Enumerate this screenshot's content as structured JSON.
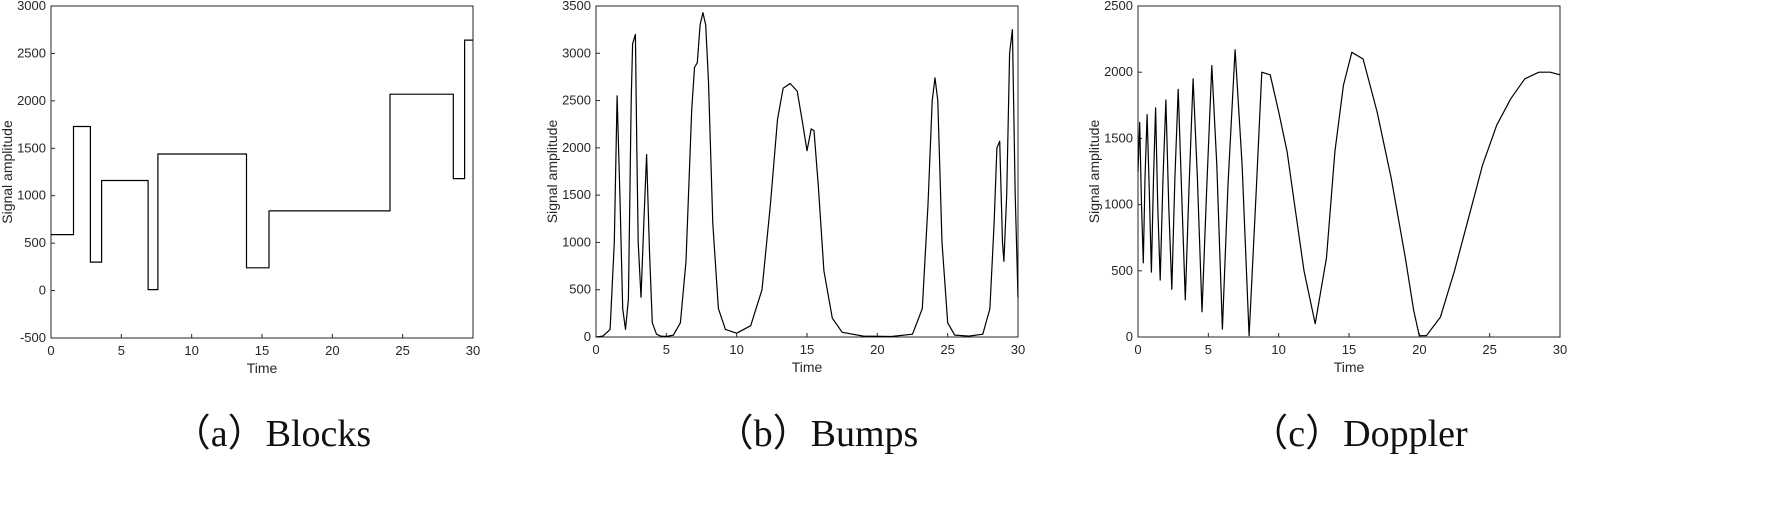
{
  "chart_data": [
    {
      "type": "line",
      "caption": "（a）Blocks",
      "xlabel": "Time",
      "ylabel": "Signal amplitude",
      "xlim": [
        0,
        30
      ],
      "ylim": [
        -500,
        3000
      ],
      "xticks": [
        0,
        5,
        10,
        15,
        20,
        25,
        30
      ],
      "yticks": [
        -500,
        0,
        500,
        1000,
        1500,
        2000,
        2500,
        3000
      ],
      "series": [
        {
          "x": [
            0,
            1.6,
            1.6,
            2.8,
            2.8,
            3.6,
            3.6,
            6.9,
            6.9,
            7.6,
            7.6,
            13.9,
            13.9,
            15.5,
            15.5,
            24.1,
            24.1,
            28.6,
            28.6,
            29.4,
            29.4,
            30
          ],
          "y": [
            590,
            590,
            1730,
            1730,
            300,
            300,
            1160,
            1160,
            10,
            10,
            1440,
            1440,
            240,
            240,
            840,
            840,
            2070,
            2070,
            1180,
            1180,
            2640,
            2640
          ]
        }
      ]
    },
    {
      "type": "line",
      "caption": "（b）Bumps",
      "xlabel": "Time",
      "ylabel": "Signal amplitude",
      "xlim": [
        0,
        30
      ],
      "ylim": [
        0,
        3500
      ],
      "xticks": [
        0,
        5,
        10,
        15,
        20,
        25,
        30
      ],
      "yticks": [
        0,
        500,
        1000,
        1500,
        2000,
        2500,
        3000,
        3500
      ],
      "series": [
        {
          "x": [
            0,
            0.5,
            1.0,
            1.3,
            1.5,
            1.7,
            1.9,
            2.1,
            2.3,
            2.5,
            2.6,
            2.8,
            2.9,
            3.0,
            3.2,
            3.4,
            3.6,
            3.8,
            4.0,
            4.3,
            4.6,
            5.0,
            5.5,
            6.0,
            6.4,
            6.8,
            7.0,
            7.2,
            7.4,
            7.6,
            7.8,
            8.0,
            8.3,
            8.7,
            9.2,
            10.0,
            11.0,
            11.8,
            12.4,
            12.9,
            13.3,
            13.8,
            14.3,
            14.7,
            15.0,
            15.3,
            15.5,
            15.8,
            16.2,
            16.8,
            17.5,
            19.0,
            21.0,
            22.5,
            23.2,
            23.6,
            23.9,
            24.1,
            24.3,
            24.6,
            25.0,
            25.5,
            26.5,
            27.5,
            28.0,
            28.3,
            28.5,
            28.7,
            28.9,
            29.0,
            29.2,
            29.4,
            29.6,
            29.8,
            30.0
          ],
          "y": [
            0,
            10,
            80,
            1000,
            2550,
            1500,
            300,
            80,
            400,
            2500,
            3100,
            3200,
            2000,
            1000,
            420,
            1200,
            1930,
            900,
            150,
            30,
            10,
            5,
            20,
            150,
            800,
            2400,
            2850,
            2900,
            3300,
            3430,
            3300,
            2700,
            1200,
            300,
            80,
            40,
            120,
            500,
            1400,
            2300,
            2630,
            2680,
            2600,
            2250,
            1970,
            2200,
            2180,
            1600,
            700,
            200,
            50,
            10,
            5,
            30,
            300,
            1400,
            2500,
            2740,
            2500,
            1000,
            150,
            20,
            10,
            30,
            300,
            1200,
            2000,
            2070,
            1000,
            800,
            1500,
            3000,
            3250,
            1500,
            420
          ]
        }
      ]
    },
    {
      "type": "line",
      "caption": "（c）Doppler",
      "xlabel": "Time",
      "ylabel": "Signal amplitude",
      "xlim": [
        0,
        30
      ],
      "ylim": [
        0,
        2500
      ],
      "xticks": [
        0,
        5,
        10,
        15,
        20,
        25,
        30
      ],
      "yticks": [
        0,
        500,
        1000,
        1500,
        2000,
        2500
      ],
      "series": [
        {
          "x": [
            0,
            0.12,
            0.25,
            0.38,
            0.5,
            0.65,
            0.8,
            0.95,
            1.1,
            1.25,
            1.4,
            1.58,
            1.78,
            1.98,
            2.18,
            2.4,
            2.62,
            2.86,
            3.1,
            3.36,
            3.62,
            3.92,
            4.22,
            4.55,
            4.88,
            5.25,
            5.6,
            6.0,
            6.4,
            6.9,
            7.4,
            7.9,
            8.4,
            8.8,
            9.4,
            10.0,
            10.6,
            11.0,
            11.8,
            12.6,
            13.4,
            14.0,
            14.6,
            15.2,
            16.0,
            17.0,
            18.0,
            19.0,
            19.6,
            20.0,
            20.5,
            21.5,
            22.5,
            23.5,
            24.5,
            25.5,
            26.5,
            27.5,
            28.5,
            29.3,
            30.0
          ],
          "y": [
            1250,
            1620,
            1000,
            560,
            1200,
            1680,
            1100,
            490,
            1200,
            1730,
            1000,
            430,
            1200,
            1790,
            1000,
            360,
            1200,
            1870,
            1100,
            280,
            1100,
            1950,
            1200,
            190,
            1100,
            2050,
            1300,
            60,
            1150,
            2170,
            1300,
            10,
            1100,
            2000,
            1980,
            1700,
            1400,
            1100,
            500,
            100,
            600,
            1400,
            1900,
            2150,
            2100,
            1700,
            1200,
            600,
            200,
            10,
            10,
            150,
            500,
            900,
            1300,
            1600,
            1800,
            1950,
            2000,
            2000,
            1980
          ]
        }
      ]
    }
  ]
}
